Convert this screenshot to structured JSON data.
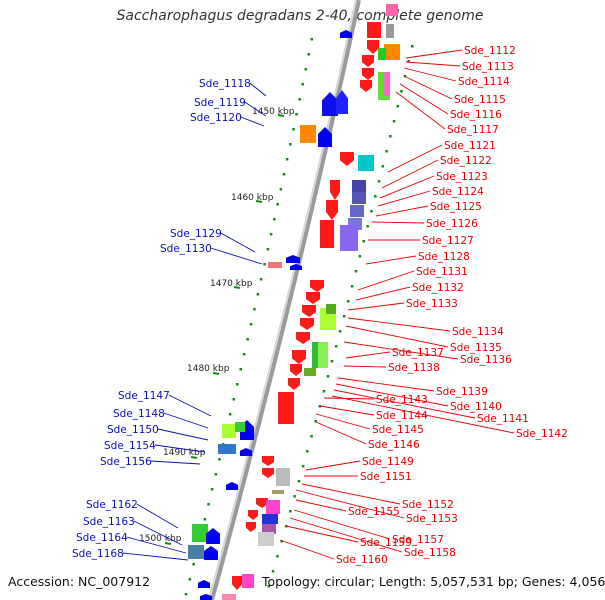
{
  "title": "Saccharophagus degradans 2-40, complete genome",
  "accession": "Accession: NC_007912",
  "topology_line": "Topology: circular; Length: 5,057,531 bp; Genes: 4,056",
  "colors": {
    "left_label": "#0a10b0",
    "right_label": "#e60000",
    "backbone": "#7a7a7a",
    "tick": "#138a13"
  },
  "kbp_ticks": [
    "1450 kbp",
    "1460 kbp",
    "1470 kbp",
    "1480 kbp",
    "1490 kbp",
    "1500 kbp"
  ],
  "left_labels": [
    "Sde_1118",
    "Sde_1119",
    "Sde_1120",
    "Sde_1129",
    "Sde_1130",
    "Sde_1147",
    "Sde_1148",
    "Sde_1150",
    "Sde_1154",
    "Sde_1156",
    "Sde_1162",
    "Sde_1163",
    "Sde_1164",
    "Sde_1168"
  ],
  "right_labels": [
    "Sde_1112",
    "Sde_1113",
    "Sde_1114",
    "Sde_1115",
    "Sde_1116",
    "Sde_1117",
    "Sde_1121",
    "Sde_1122",
    "Sde_1123",
    "Sde_1124",
    "Sde_1125",
    "Sde_1126",
    "Sde_1127",
    "Sde_1128",
    "Sde_1131",
    "Sde_1132",
    "Sde_1133",
    "Sde_1134",
    "Sde_1135",
    "Sde_1136",
    "Sde_1137",
    "Sde_1138",
    "Sde_1139",
    "Sde_1140",
    "Sde_1141",
    "Sde_1142",
    "Sde_1143",
    "Sde_1144",
    "Sde_1145",
    "Sde_1146",
    "Sde_1149",
    "Sde_1151",
    "Sde_1152",
    "Sde_1153",
    "Sde_1155",
    "Sde_1157",
    "Sde_1158",
    "Sde_1159",
    "Sde_1160"
  ]
}
